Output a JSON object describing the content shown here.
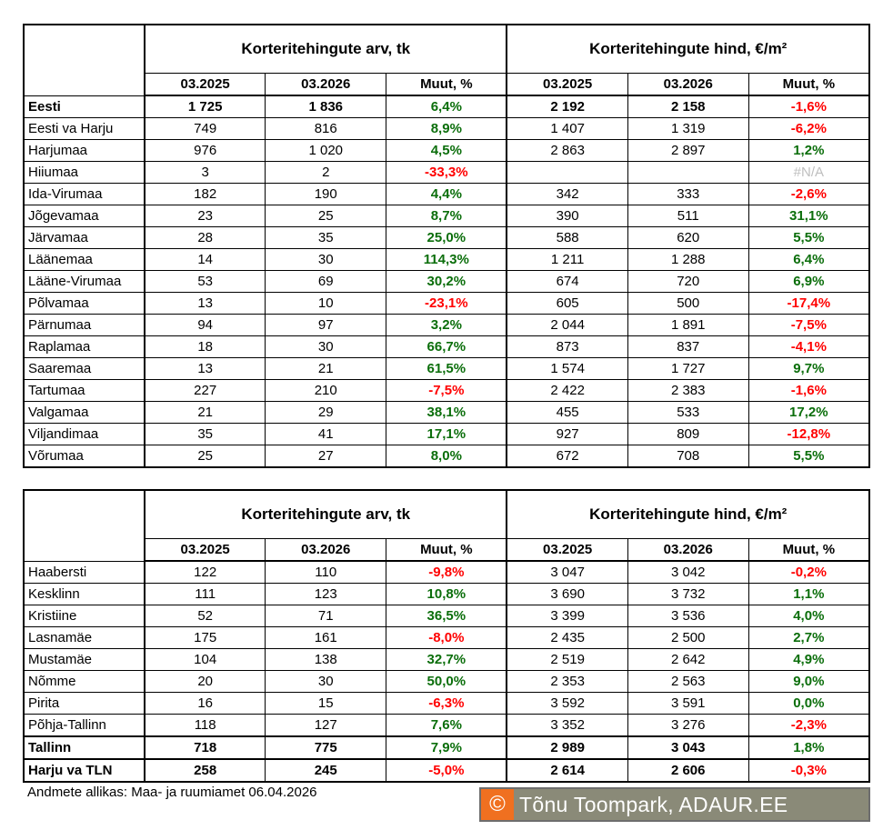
{
  "colors": {
    "positive": "#0b6e0b",
    "negative": "#ff0000",
    "na": "#bfbfbf",
    "logo_orange": "#f07020",
    "logo_gray": "#8a8a78"
  },
  "headers": {
    "group_count": "Korteritehingute arv, tk",
    "group_price": "Korteritehingute hind, €/m²",
    "col_2025": "03.2025",
    "col_2026": "03.2026",
    "col_change": "Muut, %"
  },
  "table1": [
    {
      "name": "Eesti",
      "c25": "1 725",
      "c26": "1 836",
      "cchg": "6,4%",
      "p25": "2 192",
      "p26": "2 158",
      "pchg": "-1,6%",
      "bold": true
    },
    {
      "name": "Eesti va Harju",
      "c25": "749",
      "c26": "816",
      "cchg": "8,9%",
      "p25": "1 407",
      "p26": "1 319",
      "pchg": "-6,2%"
    },
    {
      "name": "Harjumaa",
      "c25": "976",
      "c26": "1 020",
      "cchg": "4,5%",
      "p25": "2 863",
      "p26": "2 897",
      "pchg": "1,2%"
    },
    {
      "name": "Hiiumaa",
      "c25": "3",
      "c26": "2",
      "cchg": "-33,3%",
      "p25": "",
      "p26": "",
      "pchg": "#N/A"
    },
    {
      "name": "Ida-Virumaa",
      "c25": "182",
      "c26": "190",
      "cchg": "4,4%",
      "p25": "342",
      "p26": "333",
      "pchg": "-2,6%"
    },
    {
      "name": "Jõgevamaa",
      "c25": "23",
      "c26": "25",
      "cchg": "8,7%",
      "p25": "390",
      "p26": "511",
      "pchg": "31,1%"
    },
    {
      "name": "Järvamaa",
      "c25": "28",
      "c26": "35",
      "cchg": "25,0%",
      "p25": "588",
      "p26": "620",
      "pchg": "5,5%"
    },
    {
      "name": "Läänemaa",
      "c25": "14",
      "c26": "30",
      "cchg": "114,3%",
      "p25": "1 211",
      "p26": "1 288",
      "pchg": "6,4%"
    },
    {
      "name": "Lääne-Virumaa",
      "c25": "53",
      "c26": "69",
      "cchg": "30,2%",
      "p25": "674",
      "p26": "720",
      "pchg": "6,9%"
    },
    {
      "name": "Põlvamaa",
      "c25": "13",
      "c26": "10",
      "cchg": "-23,1%",
      "p25": "605",
      "p26": "500",
      "pchg": "-17,4%"
    },
    {
      "name": "Pärnumaa",
      "c25": "94",
      "c26": "97",
      "cchg": "3,2%",
      "p25": "2 044",
      "p26": "1 891",
      "pchg": "-7,5%"
    },
    {
      "name": "Raplamaa",
      "c25": "18",
      "c26": "30",
      "cchg": "66,7%",
      "p25": "873",
      "p26": "837",
      "pchg": "-4,1%"
    },
    {
      "name": "Saaremaa",
      "c25": "13",
      "c26": "21",
      "cchg": "61,5%",
      "p25": "1 574",
      "p26": "1 727",
      "pchg": "9,7%"
    },
    {
      "name": "Tartumaa",
      "c25": "227",
      "c26": "210",
      "cchg": "-7,5%",
      "p25": "2 422",
      "p26": "2 383",
      "pchg": "-1,6%"
    },
    {
      "name": "Valgamaa",
      "c25": "21",
      "c26": "29",
      "cchg": "38,1%",
      "p25": "455",
      "p26": "533",
      "pchg": "17,2%"
    },
    {
      "name": "Viljandimaa",
      "c25": "35",
      "c26": "41",
      "cchg": "17,1%",
      "p25": "927",
      "p26": "809",
      "pchg": "-12,8%"
    },
    {
      "name": "Võrumaa",
      "c25": "25",
      "c26": "27",
      "cchg": "8,0%",
      "p25": "672",
      "p26": "708",
      "pchg": "5,5%"
    }
  ],
  "table2": [
    {
      "name": "Haabersti",
      "c25": "122",
      "c26": "110",
      "cchg": "-9,8%",
      "p25": "3 047",
      "p26": "3 042",
      "pchg": "-0,2%"
    },
    {
      "name": "Kesklinn",
      "c25": "111",
      "c26": "123",
      "cchg": "10,8%",
      "p25": "3 690",
      "p26": "3 732",
      "pchg": "1,1%"
    },
    {
      "name": "Kristiine",
      "c25": "52",
      "c26": "71",
      "cchg": "36,5%",
      "p25": "3 399",
      "p26": "3 536",
      "pchg": "4,0%"
    },
    {
      "name": "Lasnamäe",
      "c25": "175",
      "c26": "161",
      "cchg": "-8,0%",
      "p25": "2 435",
      "p26": "2 500",
      "pchg": "2,7%"
    },
    {
      "name": "Mustamäe",
      "c25": "104",
      "c26": "138",
      "cchg": "32,7%",
      "p25": "2 519",
      "p26": "2 642",
      "pchg": "4,9%"
    },
    {
      "name": "Nõmme",
      "c25": "20",
      "c26": "30",
      "cchg": "50,0%",
      "p25": "2 353",
      "p26": "2 563",
      "pchg": "9,0%"
    },
    {
      "name": "Pirita",
      "c25": "16",
      "c26": "15",
      "cchg": "-6,3%",
      "p25": "3 592",
      "p26": "3 591",
      "pchg": "0,0%"
    },
    {
      "name": "Põhja-Tallinn",
      "c25": "118",
      "c26": "127",
      "cchg": "7,6%",
      "p25": "3 352",
      "p26": "3 276",
      "pchg": "-2,3%"
    },
    {
      "name": "Tallinn",
      "c25": "718",
      "c26": "775",
      "cchg": "7,9%",
      "p25": "2 989",
      "p26": "3 043",
      "pchg": "1,8%",
      "bold": true
    },
    {
      "name": "Harju va TLN",
      "c25": "258",
      "c26": "245",
      "cchg": "-5,0%",
      "p25": "2 614",
      "p26": "2 606",
      "pchg": "-0,3%",
      "bold": true
    }
  ],
  "footer": {
    "source": "Andmete allikas: Maa- ja ruumiamet 06.04.2026",
    "copyright_symbol": "©",
    "logo_text": "Tõnu Toompark, ADAUR.EE"
  }
}
